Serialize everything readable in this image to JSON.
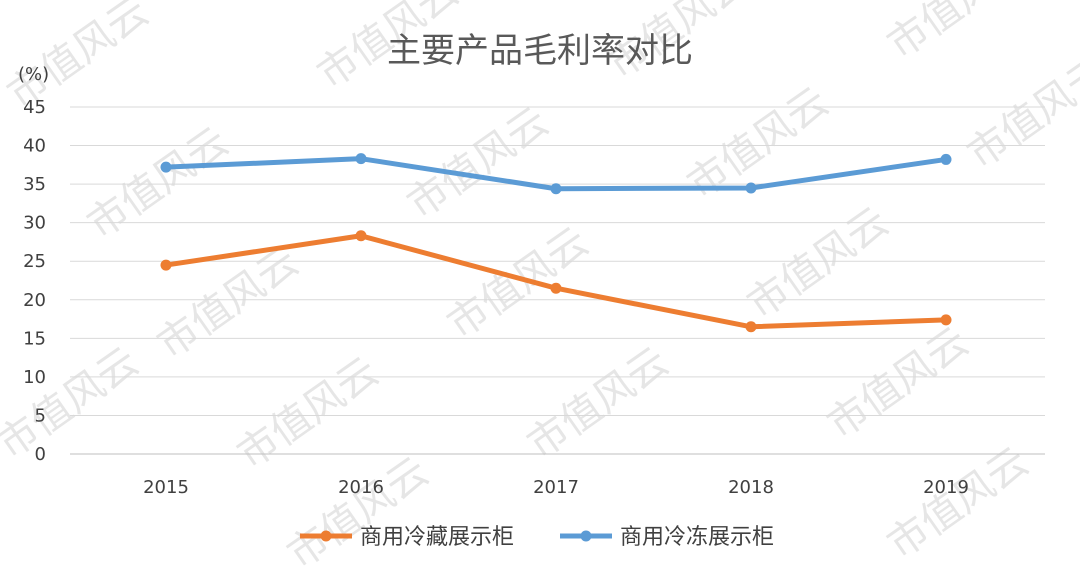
{
  "chart_data": {
    "type": "line",
    "title": "主要产品毛利率对比",
    "unit_label": "(%)",
    "categories": [
      "2015",
      "2016",
      "2017",
      "2018",
      "2019"
    ],
    "ylim": [
      0,
      45
    ],
    "y_ticks": [
      0,
      5,
      10,
      15,
      20,
      25,
      30,
      35,
      40,
      45
    ],
    "grid": true,
    "legend_position": "bottom",
    "series": [
      {
        "name": "商用冷藏展示柜",
        "color": "#ed7d31",
        "values": [
          24.5,
          28.3,
          21.5,
          16.5,
          17.4
        ]
      },
      {
        "name": "商用冷冻展示柜",
        "color": "#5b9bd5",
        "values": [
          37.2,
          38.3,
          34.4,
          34.5,
          38.2
        ]
      }
    ]
  },
  "watermark": "市值风云"
}
